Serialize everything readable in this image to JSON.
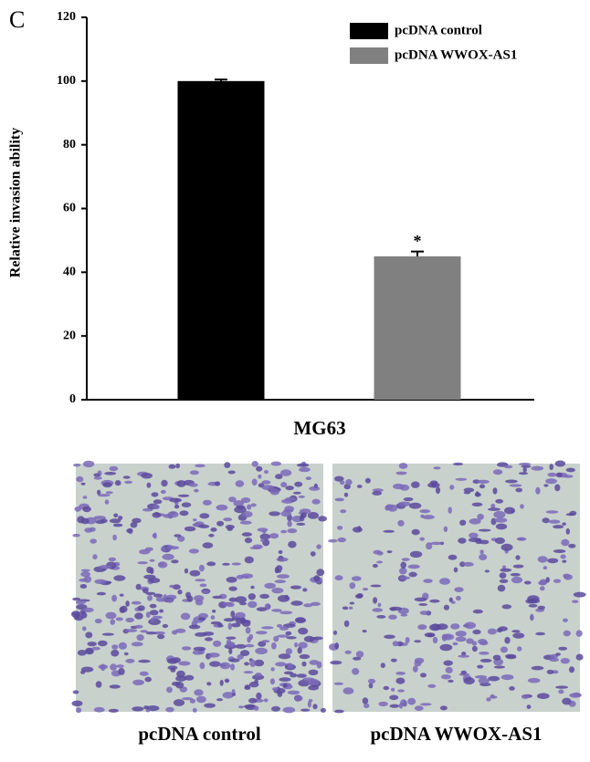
{
  "chart_data": {
    "type": "bar",
    "panel_label": "C",
    "y_label": "Relative invasion ability",
    "categories": [
      "MG63"
    ],
    "series": [
      {
        "name": "pcDNA control",
        "color": "#000000",
        "values": [
          100
        ],
        "errors": [
          0.5
        ]
      },
      {
        "name": "pcDNA WWOX-AS1",
        "color": "#808080",
        "values": [
          45
        ],
        "errors": [
          1.5
        ],
        "significance": [
          "*"
        ]
      }
    ],
    "ylim": [
      0,
      120
    ],
    "yticks": [
      0,
      20,
      40,
      60,
      80,
      100,
      120
    ],
    "legend": "upper-right",
    "grid": false
  },
  "micrographs": {
    "captions": [
      "pcDNA control",
      "pcDNA WWOX-AS1"
    ]
  }
}
